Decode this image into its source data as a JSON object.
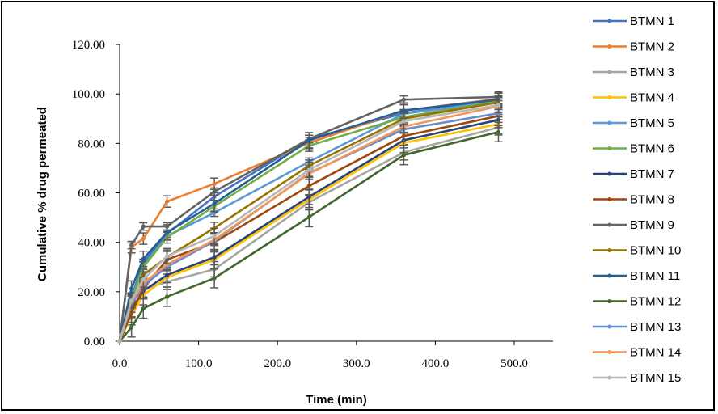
{
  "chart_data": {
    "type": "line",
    "title": "",
    "xlabel": "Time (min)",
    "ylabel": "Cumulative % drug permeated",
    "xlim": [
      0,
      550
    ],
    "ylim": [
      0,
      120
    ],
    "x_ticks": [
      0,
      100,
      200,
      300,
      400,
      500
    ],
    "x_tick_labels": [
      "0.0",
      "100.0",
      "200.0",
      "300.0",
      "400.0",
      "500.0"
    ],
    "y_ticks": [
      0,
      20,
      40,
      60,
      80,
      100,
      120
    ],
    "y_tick_labels": [
      "0.00",
      "20.00",
      "40.00",
      "60.00",
      "80.00",
      "100.00",
      "120.00"
    ],
    "grid": false,
    "legend_position": "right",
    "error_bars": true,
    "x": [
      0,
      15,
      30,
      60,
      120,
      240,
      360,
      480
    ],
    "series": [
      {
        "name": "BTMN 1",
        "color": "#4472C4",
        "values": [
          0,
          18.0,
          31.7,
          43.5,
          58.5,
          81.8,
          92.2,
          97.5
        ]
      },
      {
        "name": "BTMN 2",
        "color": "#ED7D31",
        "values": [
          0,
          38.0,
          41.5,
          56.5,
          63.7,
          80.2,
          93.3,
          98.0
        ]
      },
      {
        "name": "BTMN 3",
        "color": "#A5A5A5",
        "values": [
          0,
          15.5,
          21.0,
          24.0,
          29.1,
          56.2,
          76.4,
          86.5
        ]
      },
      {
        "name": "BTMN 4",
        "color": "#FFC000",
        "values": [
          0,
          10.5,
          18.6,
          25.8,
          33.0,
          57.3,
          80.2,
          87.8
        ]
      },
      {
        "name": "BTMN 5",
        "color": "#5B9BD5",
        "values": [
          0,
          17.0,
          30.5,
          42.5,
          52.0,
          72.6,
          92.0,
          97.0
        ]
      },
      {
        "name": "BTMN 6",
        "color": "#70AD47",
        "values": [
          0,
          16.5,
          30.0,
          42.0,
          54.6,
          79.1,
          90.6,
          97.0
        ]
      },
      {
        "name": "BTMN 7",
        "color": "#264478",
        "values": [
          0,
          13.0,
          20.3,
          26.8,
          34.0,
          58.4,
          81.3,
          89.5
        ]
      },
      {
        "name": "BTMN 8",
        "color": "#9E480E",
        "values": [
          0,
          11.5,
          21.3,
          33.0,
          40.0,
          62.8,
          83.0,
          91.1
        ]
      },
      {
        "name": "BTMN 9",
        "color": "#636363",
        "values": [
          0,
          38.9,
          46.4,
          46.4,
          60.5,
          81.8,
          97.7,
          98.8
        ]
      },
      {
        "name": "BTMN 10",
        "color": "#997300",
        "values": [
          0,
          14.0,
          26.8,
          34.0,
          45.8,
          71.0,
          90.0,
          96.6
        ]
      },
      {
        "name": "BTMN 11",
        "color": "#255E91",
        "values": [
          0,
          21.3,
          33.3,
          44.0,
          55.7,
          81.3,
          93.3,
          97.7
        ]
      },
      {
        "name": "BTMN 12",
        "color": "#43682B",
        "values": [
          0,
          5.6,
          13.2,
          18.0,
          25.5,
          50.2,
          75.3,
          84.6
        ]
      },
      {
        "name": "BTMN 13",
        "color": "#698ED0",
        "values": [
          0,
          15.0,
          22.5,
          30.0,
          40.5,
          68.0,
          85.7,
          92.2
        ]
      },
      {
        "name": "BTMN 14",
        "color": "#F1975A",
        "values": [
          0,
          16.0,
          23.5,
          31.0,
          41.0,
          67.7,
          86.8,
          95.0
        ]
      },
      {
        "name": "BTMN 15",
        "color": "#B7B7B7",
        "values": [
          0,
          16.5,
          25.0,
          34.4,
          42.6,
          69.3,
          89.0,
          95.5
        ]
      }
    ]
  }
}
